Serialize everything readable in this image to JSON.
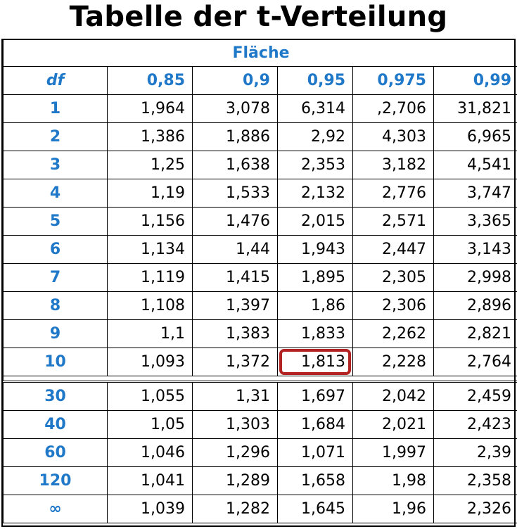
{
  "title": "Tabelle der t-Verteilung",
  "table": {
    "area_label": "Fläche",
    "df_label": "df",
    "columns": [
      "0,85",
      "0,9",
      "0,95",
      "0,975",
      "0,99"
    ],
    "rows_top": [
      {
        "df": "1",
        "values": [
          "1,964",
          "3,078",
          "6,314",
          ",2,706",
          "31,821"
        ]
      },
      {
        "df": "2",
        "values": [
          "1,386",
          "1,886",
          "2,92",
          "4,303",
          "6,965"
        ]
      },
      {
        "df": "3",
        "values": [
          "1,25",
          "1,638",
          "2,353",
          "3,182",
          "4,541"
        ]
      },
      {
        "df": "4",
        "values": [
          "1,19",
          "1,533",
          "2,132",
          "2,776",
          "3,747"
        ]
      },
      {
        "df": "5",
        "values": [
          "1,156",
          "1,476",
          "2,015",
          "2,571",
          "3,365"
        ]
      },
      {
        "df": "6",
        "values": [
          "1,134",
          "1,44",
          "1,943",
          "2,447",
          "3,143"
        ]
      },
      {
        "df": "7",
        "values": [
          "1,119",
          "1,415",
          "1,895",
          "2,305",
          "2,998"
        ]
      },
      {
        "df": "8",
        "values": [
          "1,108",
          "1,397",
          "1,86",
          "2,306",
          "2,896"
        ]
      },
      {
        "df": "9",
        "values": [
          "1,1",
          "1,383",
          "1,833",
          "2,262",
          "2,821"
        ]
      },
      {
        "df": "10",
        "values": [
          "1,093",
          "1,372",
          "1,813",
          "2,228",
          "2,764"
        ]
      }
    ],
    "rows_bottom": [
      {
        "df": "30",
        "values": [
          "1,055",
          "1,31",
          "1,697",
          "2,042",
          "2,459"
        ]
      },
      {
        "df": "40",
        "values": [
          "1,05",
          "1,303",
          "1,684",
          "2,021",
          "2,423"
        ]
      },
      {
        "df": "60",
        "values": [
          "1,046",
          "1,296",
          "1,071",
          "1,997",
          "2,39"
        ]
      },
      {
        "df": "120",
        "values": [
          "1,041",
          "1,289",
          "1,658",
          "1,98",
          "2,358"
        ]
      },
      {
        "df": "∞",
        "values": [
          "1,039",
          "1,282",
          "1,645",
          "1,96",
          "2,326"
        ]
      }
    ],
    "highlight": {
      "df": "10",
      "column": "0,95",
      "color": "#b22222"
    },
    "accent_color": "#1f78c8"
  }
}
